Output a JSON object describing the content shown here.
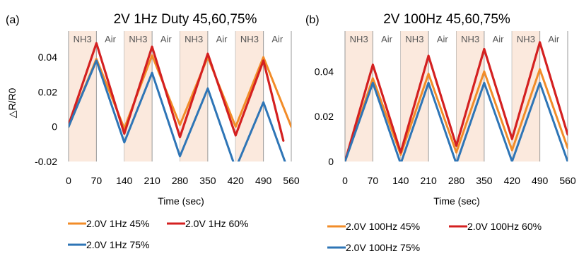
{
  "chart_data": [
    {
      "type": "line",
      "panel_label": "(a)",
      "title": "2V 1Hz Duty 45,60,75%",
      "xlabel": "Time (sec)",
      "ylabel": "△R/R0",
      "xlim": [
        0,
        560
      ],
      "ylim": [
        -0.02,
        0.055
      ],
      "xticks": [
        "0",
        "70",
        "140",
        "210",
        "280",
        "350",
        "420",
        "490",
        "560"
      ],
      "yticks": [
        {
          "value": 0.04,
          "label": "0.04"
        },
        {
          "value": 0.02,
          "label": "0.02"
        },
        {
          "value": 0,
          "label": "0"
        },
        {
          "value": -0.02,
          "label": "-0.02"
        }
      ],
      "phases": [
        {
          "label": "NH3",
          "start": 0,
          "end": 70
        },
        {
          "label": "Air",
          "start": 70,
          "end": 140
        },
        {
          "label": "NH3",
          "start": 140,
          "end": 210
        },
        {
          "label": "Air",
          "start": 210,
          "end": 280
        },
        {
          "label": "NH3",
          "start": 280,
          "end": 350
        },
        {
          "label": "Air",
          "start": 350,
          "end": 420
        },
        {
          "label": "NH3",
          "start": 420,
          "end": 490
        },
        {
          "label": "Air",
          "start": 490,
          "end": 560
        }
      ],
      "series": [
        {
          "name": "2.0V 1Hz 45%",
          "color": "#F28C28",
          "points": [
            [
              0,
              0
            ],
            [
              70,
              0.039
            ],
            [
              140,
              -0.001
            ],
            [
              210,
              0.041
            ],
            [
              280,
              0.001
            ],
            [
              350,
              0.04
            ],
            [
              420,
              0.0
            ],
            [
              490,
              0.04
            ],
            [
              560,
              0.0
            ]
          ]
        },
        {
          "name": "2.0V 1Hz 60%",
          "color": "#D42020",
          "points": [
            [
              0,
              0.001
            ],
            [
              70,
              0.048
            ],
            [
              140,
              -0.004
            ],
            [
              210,
              0.046
            ],
            [
              280,
              -0.006
            ],
            [
              350,
              0.042
            ],
            [
              420,
              -0.005
            ],
            [
              490,
              0.038
            ],
            [
              540,
              -0.008
            ]
          ]
        },
        {
          "name": "2.0V 1Hz 75%",
          "color": "#2E75B6",
          "points": [
            [
              0,
              0
            ],
            [
              70,
              0.038
            ],
            [
              140,
              -0.009
            ],
            [
              210,
              0.031
            ],
            [
              280,
              -0.017
            ],
            [
              350,
              0.022
            ],
            [
              420,
              -0.024
            ],
            [
              490,
              0.014
            ],
            [
              560,
              -0.03
            ]
          ]
        }
      ],
      "legend": [
        {
          "name": "2.0V 1Hz 45%",
          "color": "#F28C28"
        },
        {
          "name": "2.0V 1Hz 60%",
          "color": "#D42020"
        },
        {
          "name": "2.0V 1Hz 75%",
          "color": "#2E75B6"
        }
      ]
    },
    {
      "type": "line",
      "panel_label": "(b)",
      "title": "2V 100Hz 45,60,75%",
      "xlabel": "Time (sec)",
      "ylabel": "",
      "xlim": [
        0,
        560
      ],
      "ylim": [
        0,
        0.058
      ],
      "xticks": [
        "0",
        "70",
        "140",
        "210",
        "280",
        "350",
        "420",
        "490",
        "560"
      ],
      "yticks": [
        {
          "value": 0.04,
          "label": "0.04"
        },
        {
          "value": 0.02,
          "label": "0.02"
        },
        {
          "value": 0,
          "label": "0"
        }
      ],
      "phases": [
        {
          "label": "NH3",
          "start": 0,
          "end": 70
        },
        {
          "label": "Air",
          "start": 70,
          "end": 140
        },
        {
          "label": "NH3",
          "start": 140,
          "end": 210
        },
        {
          "label": "Air",
          "start": 210,
          "end": 280
        },
        {
          "label": "NH3",
          "start": 280,
          "end": 350
        },
        {
          "label": "Air",
          "start": 350,
          "end": 420
        },
        {
          "label": "NH3",
          "start": 420,
          "end": 490
        },
        {
          "label": "Air",
          "start": 490,
          "end": 560
        }
      ],
      "series": [
        {
          "name": "2.0V 100Hz 45%",
          "color": "#F28C28",
          "points": [
            [
              0,
              0
            ],
            [
              70,
              0.037
            ],
            [
              140,
              0.003
            ],
            [
              210,
              0.039
            ],
            [
              280,
              0.004
            ],
            [
              350,
              0.04
            ],
            [
              420,
              0.005
            ],
            [
              490,
              0.041
            ],
            [
              560,
              0.006
            ]
          ]
        },
        {
          "name": "2.0V 100Hz 60%",
          "color": "#D42020",
          "points": [
            [
              0,
              0
            ],
            [
              70,
              0.043
            ],
            [
              140,
              0.004
            ],
            [
              210,
              0.047
            ],
            [
              280,
              0.007
            ],
            [
              350,
              0.05
            ],
            [
              420,
              0.01
            ],
            [
              490,
              0.053
            ],
            [
              560,
              0.012
            ]
          ]
        },
        {
          "name": "2.0V 100Hz 75%",
          "color": "#2E75B6",
          "points": [
            [
              0,
              0
            ],
            [
              70,
              0.035
            ],
            [
              140,
              -0.001
            ],
            [
              210,
              0.035
            ],
            [
              280,
              -0.001
            ],
            [
              350,
              0.035
            ],
            [
              420,
              0.0
            ],
            [
              490,
              0.035
            ],
            [
              560,
              0.0
            ]
          ]
        }
      ],
      "legend": [
        {
          "name": "2.0V 100Hz 45%",
          "color": "#F28C28"
        },
        {
          "name": "2.0V 100Hz 60%",
          "color": "#D42020"
        },
        {
          "name": "2.0V 100Hz 75%",
          "color": "#2E75B6"
        }
      ]
    }
  ],
  "colors": {
    "nh3_band": "#FBE9DD",
    "divider": "#9A9A9A",
    "axis": "#000000"
  }
}
